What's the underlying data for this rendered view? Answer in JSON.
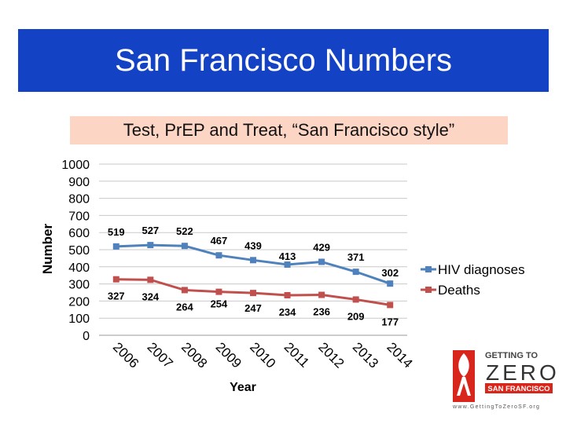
{
  "slide": {
    "title": "San Francisco Numbers",
    "subtitle": "Test, PrEP and Treat, “San Francisco style”"
  },
  "logo": {
    "line1": "GETTING TO",
    "line2": "ZERO",
    "line3": "SAN FRANCISCO",
    "url": "www.GettingToZeroSF.org"
  },
  "colors": {
    "title_bg": "#1342c4",
    "subtitle_bg": "#fcd5c5",
    "hiv": "#4f81bd",
    "deaths": "#c0504d",
    "logo_red": "#d9261c"
  },
  "chart_data": {
    "type": "line",
    "categories": [
      "2006",
      "2007",
      "2008",
      "2009",
      "2010",
      "2011",
      "2012",
      "2013",
      "2014"
    ],
    "series": [
      {
        "name": "HIV diagnoses",
        "values": [
          519,
          527,
          522,
          467,
          439,
          413,
          429,
          371,
          302
        ],
        "color": "#4f81bd"
      },
      {
        "name": "Deaths",
        "values": [
          327,
          324,
          264,
          254,
          247,
          234,
          236,
          209,
          177
        ],
        "color": "#c0504d"
      }
    ],
    "xlabel": "Year",
    "ylabel": "Number",
    "ylim": [
      0,
      1000
    ],
    "yticks": [
      0,
      100,
      200,
      300,
      400,
      500,
      600,
      700,
      800,
      900,
      1000
    ],
    "grid": true,
    "legend": "right"
  }
}
